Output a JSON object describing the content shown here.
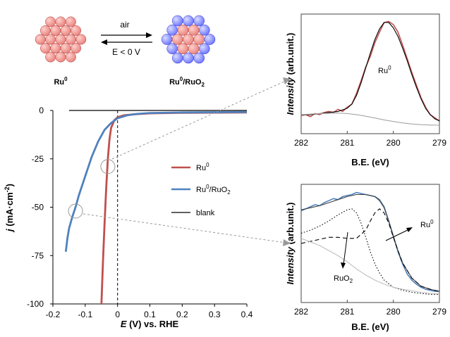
{
  "colors": {
    "ru": "#c0504d",
    "ruo2": "#4f81bd",
    "blank": "#000000",
    "fit_envelope": "#000000",
    "background_fit": "#a6a6a6",
    "ru_atom": "#e8807a",
    "o_atom": "#6b72ff"
  },
  "scheme": {
    "left_label": "Ru",
    "left_label_sup": "0",
    "right_label_a": "Ru",
    "right_label_a_sup": "0",
    "right_label_b": "/RuO",
    "right_label_b_sub": "2",
    "arrow_top": "air",
    "arrow_bottom": "E < 0 V"
  },
  "chart_data": [
    {
      "type": "line",
      "xlabel_italic": "E",
      "xlabel_rest": " (V) vs. RHE",
      "ylabel_italic": "j",
      "ylabel_rest": " (mA·cm",
      "ylabel_sup": "-2",
      "ylabel_end": ")",
      "xlim": [
        -0.2,
        0.4
      ],
      "ylim": [
        -100,
        0
      ],
      "xticks": [
        "-0.2",
        "-0.1",
        "0",
        "0.1",
        "0.2",
        "0.3",
        "0.4"
      ],
      "yticks": [
        "0",
        "-25",
        "-50",
        "-75",
        "-100"
      ],
      "xtick_values": [
        -0.2,
        -0.1,
        0,
        0.1,
        0.2,
        0.3,
        0.4
      ],
      "ytick_values": [
        0,
        -25,
        -50,
        -75,
        -100
      ],
      "reference_line_x": 0,
      "legend": [
        {
          "name": "Ru",
          "sup": "0",
          "sub": "",
          "tail": "",
          "color": "#c0504d"
        },
        {
          "name": "Ru",
          "sup": "0",
          "sub": "2",
          "tail": "/RuO",
          "color": "#4f81bd"
        },
        {
          "name": "blank",
          "sup": "",
          "sub": "",
          "tail": "",
          "color": "#000000"
        }
      ],
      "series": [
        {
          "key": "ru",
          "color": "#c0504d",
          "x": [
            -0.05,
            -0.045,
            -0.04,
            -0.035,
            -0.03,
            -0.025,
            -0.02,
            -0.01,
            0.0,
            0.02,
            0.05,
            0.1,
            0.2,
            0.4
          ],
          "y": [
            -100,
            -78,
            -58,
            -40,
            -25,
            -15,
            -9,
            -5,
            -3.5,
            -2.5,
            -2,
            -1.5,
            -1.2,
            -1
          ]
        },
        {
          "key": "ruo2",
          "color": "#4f81bd",
          "x": [
            -0.16,
            -0.155,
            -0.15,
            -0.14,
            -0.13,
            -0.12,
            -0.1,
            -0.08,
            -0.06,
            -0.04,
            -0.02,
            0.0,
            0.03,
            0.06,
            0.1,
            0.2,
            0.4
          ],
          "y": [
            -73,
            -66,
            -61,
            -55,
            -50,
            -44,
            -34,
            -24,
            -16,
            -10,
            -6.5,
            -4,
            -2.5,
            -1.8,
            -1.3,
            -1,
            -0.8
          ]
        },
        {
          "key": "blank",
          "color": "#000000",
          "x": [
            -0.15,
            0.4
          ],
          "y": [
            0,
            0
          ]
        }
      ],
      "callouts": [
        {
          "x": -0.03,
          "y": -29
        },
        {
          "x": -0.13,
          "y": -52
        }
      ]
    },
    {
      "type": "line",
      "xlabel": "B.E. (eV)",
      "ylabel_italic": "Intensity",
      "ylabel_rest": " (arb.unit.)",
      "xlim": [
        282,
        279
      ],
      "xticks": [
        "282",
        "281",
        "280",
        "279"
      ],
      "xtick_values": [
        282,
        281,
        280,
        279
      ],
      "annotations": [
        {
          "text": "Ru",
          "sup": "0"
        }
      ],
      "series": [
        {
          "key": "data",
          "color": "#c0504d",
          "x": [
            282,
            281.9,
            281.8,
            281.7,
            281.6,
            281.5,
            281.4,
            281.3,
            281.2,
            281.1,
            281.0,
            280.9,
            280.8,
            280.7,
            280.6,
            280.5,
            280.4,
            280.3,
            280.2,
            280.1,
            280.0,
            279.9,
            279.8,
            279.7,
            279.6,
            279.5,
            279.4,
            279.3,
            279.2,
            279.1,
            279.0
          ],
          "y": [
            0.09,
            0.1,
            0.08,
            0.11,
            0.1,
            0.12,
            0.13,
            0.12,
            0.15,
            0.13,
            0.17,
            0.2,
            0.3,
            0.42,
            0.55,
            0.65,
            0.78,
            0.88,
            0.97,
            0.98,
            0.95,
            0.88,
            0.76,
            0.63,
            0.5,
            0.38,
            0.26,
            0.17,
            0.1,
            0.07,
            0.04
          ]
        },
        {
          "key": "fit",
          "color": "#000000",
          "x": [
            282,
            281.8,
            281.6,
            281.4,
            281.2,
            281.0,
            280.9,
            280.8,
            280.7,
            280.6,
            280.5,
            280.4,
            280.3,
            280.2,
            280.1,
            280.0,
            279.9,
            279.8,
            279.7,
            279.6,
            279.5,
            279.4,
            279.3,
            279.2,
            279.1,
            279.0
          ],
          "y": [
            0.1,
            0.1,
            0.11,
            0.12,
            0.13,
            0.16,
            0.2,
            0.28,
            0.4,
            0.54,
            0.68,
            0.81,
            0.91,
            0.97,
            0.97,
            0.92,
            0.84,
            0.73,
            0.61,
            0.48,
            0.36,
            0.25,
            0.16,
            0.1,
            0.06,
            0.04
          ]
        },
        {
          "key": "background",
          "color": "#a6a6a6",
          "x": [
            282,
            281.6,
            281.2,
            281.0,
            280.8,
            280.6,
            280.4,
            280.2,
            280.0,
            279.8,
            279.6,
            279.4,
            279.2,
            279.0
          ],
          "y": [
            0.1,
            0.11,
            0.115,
            0.11,
            0.1,
            0.085,
            0.068,
            0.05,
            0.035,
            0.022,
            0.012,
            0.005,
            0.002,
            0.0
          ]
        }
      ]
    },
    {
      "type": "line",
      "xlabel": "B.E. (eV)",
      "ylabel_italic": "Intensity",
      "ylabel_rest": " (arb.unit.)",
      "xlim": [
        282,
        279
      ],
      "xticks": [
        "282",
        "281",
        "280",
        "279"
      ],
      "xtick_values": [
        282,
        281,
        280,
        279
      ],
      "annotations": [
        {
          "text": "Ru",
          "sup": "0",
          "sub": ""
        },
        {
          "text": "RuO",
          "sup": "",
          "sub": "2"
        }
      ],
      "series": [
        {
          "key": "data",
          "color": "#4f81bd",
          "x": [
            282,
            281.9,
            281.8,
            281.7,
            281.6,
            281.5,
            281.4,
            281.3,
            281.2,
            281.1,
            281.0,
            280.9,
            280.8,
            280.7,
            280.6,
            280.5,
            280.4,
            280.3,
            280.2,
            280.1,
            280.0,
            279.9,
            279.8,
            279.7,
            279.6,
            279.5,
            279.4,
            279.3,
            279.2,
            279.1,
            279.0
          ],
          "y": [
            0.82,
            0.84,
            0.86,
            0.88,
            0.87,
            0.9,
            0.92,
            0.94,
            0.93,
            0.96,
            0.97,
            0.98,
            1.0,
            0.99,
            0.98,
            0.97,
            0.96,
            0.93,
            0.86,
            0.72,
            0.57,
            0.42,
            0.3,
            0.2,
            0.14,
            0.1,
            0.07,
            0.05,
            0.04,
            0.03,
            0.03
          ]
        },
        {
          "key": "fit",
          "color": "#404040",
          "x": [
            282,
            281.8,
            281.6,
            281.4,
            281.2,
            281.0,
            280.8,
            280.6,
            280.4,
            280.3,
            280.2,
            280.1,
            280.0,
            279.9,
            279.8,
            279.6,
            279.4,
            279.2,
            279.0
          ],
          "y": [
            0.83,
            0.85,
            0.87,
            0.9,
            0.93,
            0.96,
            0.98,
            0.98,
            0.96,
            0.92,
            0.85,
            0.72,
            0.57,
            0.43,
            0.31,
            0.16,
            0.08,
            0.05,
            0.03
          ]
        },
        {
          "key": "ru0_component",
          "color": "#000000",
          "dash": "dashed",
          "x": [
            282,
            281.8,
            281.6,
            281.4,
            281.2,
            281.0,
            280.8,
            280.6,
            280.5,
            280.4,
            280.3,
            280.2,
            280.1,
            280.0,
            279.9,
            279.8,
            279.6,
            279.4,
            279.2,
            279.0
          ],
          "y": [
            0.5,
            0.52,
            0.54,
            0.56,
            0.56,
            0.55,
            0.55,
            0.63,
            0.72,
            0.8,
            0.84,
            0.8,
            0.7,
            0.56,
            0.43,
            0.31,
            0.16,
            0.08,
            0.05,
            0.03
          ]
        },
        {
          "key": "ruo2_component",
          "color": "#000000",
          "dash": "dotted",
          "x": [
            282,
            281.8,
            281.6,
            281.4,
            281.2,
            281.0,
            280.9,
            280.8,
            280.7,
            280.6,
            280.5,
            280.4,
            280.3,
            280.2,
            280.0,
            279.8,
            279.6,
            279.4,
            279.2,
            279.0
          ],
          "y": [
            0.6,
            0.63,
            0.67,
            0.72,
            0.78,
            0.83,
            0.84,
            0.8,
            0.7,
            0.56,
            0.42,
            0.3,
            0.21,
            0.14,
            0.07,
            0.04,
            0.02,
            0.01,
            0.0,
            0.0
          ]
        },
        {
          "key": "background",
          "color": "#bfbfbf",
          "x": [
            282,
            281.6,
            281.2,
            281.0,
            280.8,
            280.6,
            280.4,
            280.2,
            280.0,
            279.8,
            279.6,
            279.4,
            279.2,
            279.0
          ],
          "y": [
            0.55,
            0.48,
            0.38,
            0.32,
            0.25,
            0.19,
            0.14,
            0.1,
            0.07,
            0.05,
            0.035,
            0.02,
            0.01,
            0.005
          ]
        }
      ]
    }
  ]
}
